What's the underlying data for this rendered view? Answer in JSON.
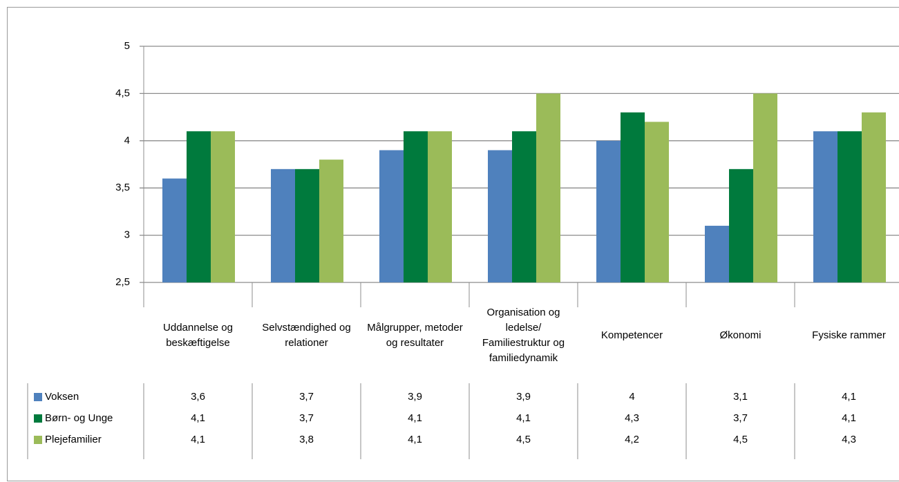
{
  "chart_data": {
    "type": "bar",
    "categories": [
      "Uddannelse og beskæftigelse",
      "Selvstændighed og relationer",
      "Målgrupper, metoder og resultater",
      "Organisation og ledelse/ Familiestruktur og familiedynamik",
      "Kompetencer",
      "Økonomi",
      "Fysiske rammer"
    ],
    "series": [
      {
        "name": "Voksen",
        "color": "#4f81bd",
        "values": [
          3.6,
          3.7,
          3.9,
          3.9,
          4,
          3.1,
          4.1
        ],
        "value_labels": [
          "3,6",
          "3,7",
          "3,9",
          "3,9",
          "4",
          "3,1",
          "4,1"
        ]
      },
      {
        "name": "Børn- og Unge",
        "color": "#007a3d",
        "values": [
          4.1,
          3.7,
          4.1,
          4.1,
          4.3,
          3.7,
          4.1
        ],
        "value_labels": [
          "4,1",
          "3,7",
          "4,1",
          "4,1",
          "4,3",
          "3,7",
          "4,1"
        ]
      },
      {
        "name": "Plejefamilier",
        "color": "#9bbb59",
        "values": [
          4.1,
          3.8,
          4.1,
          4.5,
          4.2,
          4.5,
          4.3
        ],
        "value_labels": [
          "4,1",
          "3,8",
          "4,1",
          "4,5",
          "4,2",
          "4,5",
          "4,3"
        ]
      }
    ],
    "ylim": [
      2.5,
      5
    ],
    "yticks": [
      {
        "value": 2.5,
        "label": "2,5"
      },
      3,
      {
        "value": 3.5,
        "label": "3,5"
      },
      4,
      {
        "value": 4.5,
        "label": "4,5"
      },
      5
    ],
    "grid": true
  }
}
